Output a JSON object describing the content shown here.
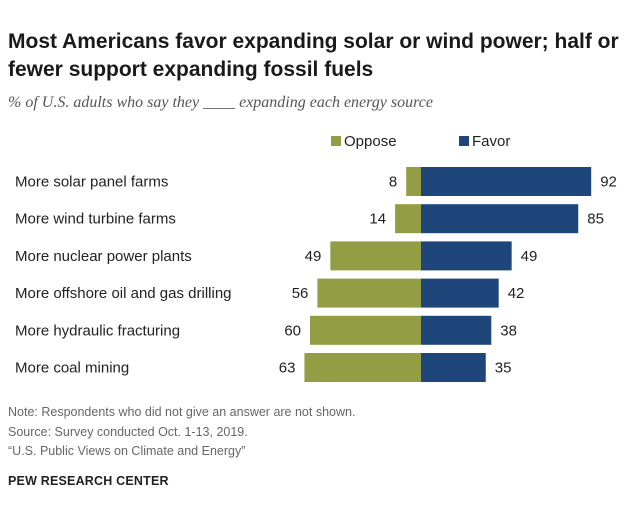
{
  "title": "Most Americans favor expanding solar or wind power; half or fewer support expanding fossil fuels",
  "subtitle": "% of U.S. adults who say they ____ expanding each energy source",
  "notes": [
    "Note: Respondents who did not give an answer are not shown.",
    "Source: Survey conducted Oct. 1-13, 2019.",
    "“U.S. Public Views on Climate and Energy”"
  ],
  "source": "PEW RESEARCH CENTER",
  "colors": {
    "oppose": "#939d43",
    "favor": "#1f467a"
  },
  "chart_data": {
    "type": "bar",
    "orientation": "horizontal-diverging",
    "categories": [
      "More solar panel farms",
      "More wind turbine farms",
      "More nuclear power plants",
      "More offshore oil and gas drilling",
      "More hydraulic fracturing",
      "More coal mining"
    ],
    "series": [
      {
        "name": "Oppose",
        "values": [
          8,
          14,
          49,
          56,
          60,
          63
        ]
      },
      {
        "name": "Favor",
        "values": [
          92,
          85,
          49,
          42,
          38,
          35
        ]
      }
    ],
    "legend_position": "top",
    "grid": false
  }
}
